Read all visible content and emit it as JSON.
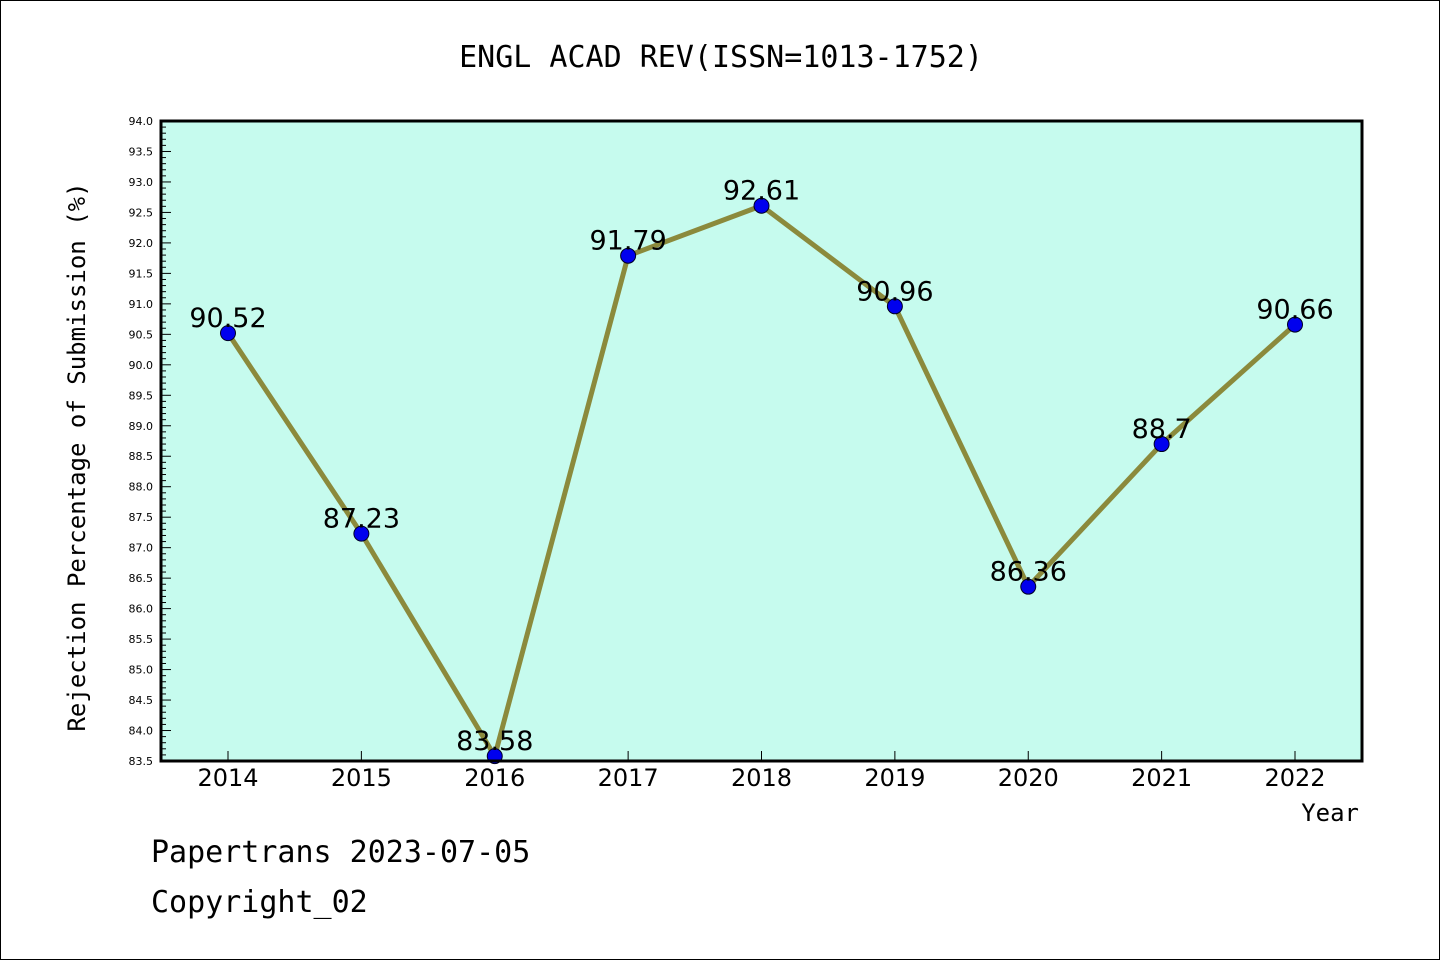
{
  "chart_data": {
    "type": "line",
    "title": "ENGL ACAD REV(ISSN=1013-1752)",
    "xlabel": "Year",
    "ylabel": "Rejection Percentage of Submission (%)",
    "categories": [
      "2014",
      "2015",
      "2016",
      "2017",
      "2018",
      "2019",
      "2020",
      "2021",
      "2022"
    ],
    "series": [
      {
        "values": [
          90.52,
          87.23,
          83.58,
          91.79,
          92.61,
          90.96,
          86.36,
          88.7,
          90.66
        ],
        "data_labels": [
          "90.52",
          "87.23",
          "83.58",
          "91.79",
          "92.61",
          "90.96",
          "86.36",
          "88.7",
          "90.66"
        ]
      }
    ],
    "ylim": [
      83.5,
      94.0
    ],
    "y_tick_labels": [
      "83.5",
      "84.0",
      "84.5",
      "85.0",
      "85.5",
      "86.0",
      "86.5",
      "87.0",
      "87.5",
      "88.0",
      "88.5",
      "89.0",
      "89.5",
      "90.0",
      "90.5",
      "91.0",
      "91.5",
      "92.0",
      "92.5",
      "93.0",
      "93.5",
      "94.0"
    ],
    "grid": false,
    "colors": {
      "plot_background": "#c6fbee",
      "line": "#8b8a3c",
      "marker": "#0000ee"
    }
  },
  "footer": {
    "line1": "Papertrans 2023-07-05",
    "line2": "Copyright_02"
  }
}
